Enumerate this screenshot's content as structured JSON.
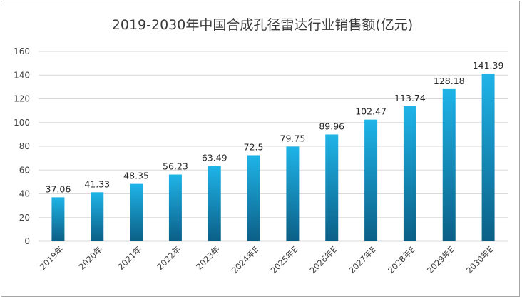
{
  "chart_data": {
    "type": "bar",
    "title": "2019-2030年中国合成孔径雷达行业销售额(亿元)",
    "xlabel": "",
    "ylabel": "",
    "categories": [
      "2019年",
      "2020年",
      "2021年",
      "2022年",
      "2023年",
      "2024年E",
      "2025年E",
      "2026年E",
      "2027年E",
      "2028年E",
      "2029年E",
      "2030年E"
    ],
    "values": [
      37.06,
      41.33,
      48.35,
      56.23,
      63.49,
      72.5,
      79.75,
      89.96,
      102.47,
      113.74,
      128.18,
      141.39
    ],
    "value_labels": [
      "37.06",
      "41.33",
      "48.35",
      "56.23",
      "63.49",
      "72.5",
      "79.75",
      "89.96",
      "102.47",
      "113.74",
      "128.18",
      "141.39"
    ],
    "ylim": [
      0,
      160
    ],
    "yticks": [
      0,
      20,
      40,
      60,
      80,
      100,
      120,
      140,
      160
    ],
    "ytick_labels": [
      "0",
      "20",
      "40",
      "60",
      "80",
      "100",
      "120",
      "140",
      "160"
    ],
    "grid": true,
    "legend": "none",
    "bar_color_top": "#1fb4e8",
    "bar_color_bottom": "#0b5f86"
  }
}
